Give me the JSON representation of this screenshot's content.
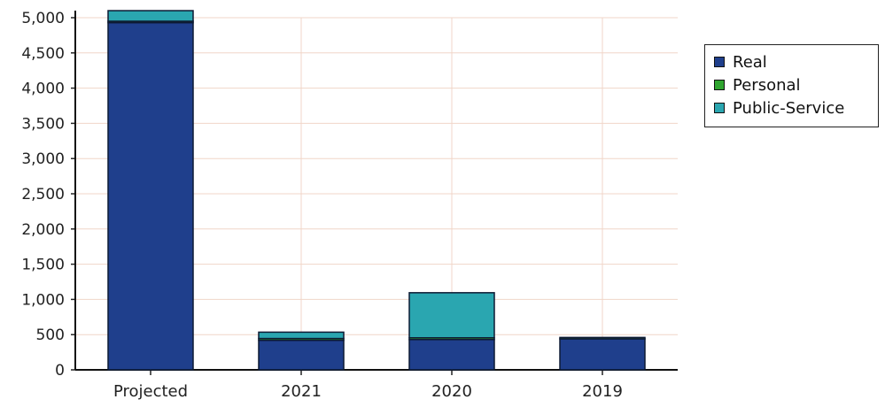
{
  "chart_data": {
    "type": "bar",
    "stacked": true,
    "categories": [
      "Projected",
      "2021",
      "2020",
      "2019"
    ],
    "series": [
      {
        "name": "Real",
        "color": "#1f3f8c",
        "values": [
          4930,
          420,
          430,
          440
        ]
      },
      {
        "name": "Personal",
        "color": "#2fa52f",
        "values": [
          20,
          25,
          25,
          20
        ]
      },
      {
        "name": "Public-Service",
        "color": "#2aa6b0",
        "values": [
          150,
          90,
          640,
          0
        ]
      }
    ],
    "y_ticks": [
      "0",
      "500",
      "1,000",
      "1,500",
      "2,000",
      "2,500",
      "3,000",
      "3,500",
      "4,000",
      "4,500",
      "5,000"
    ],
    "ylim": [
      0,
      5000
    ],
    "grid": true,
    "legend_position": "right"
  }
}
